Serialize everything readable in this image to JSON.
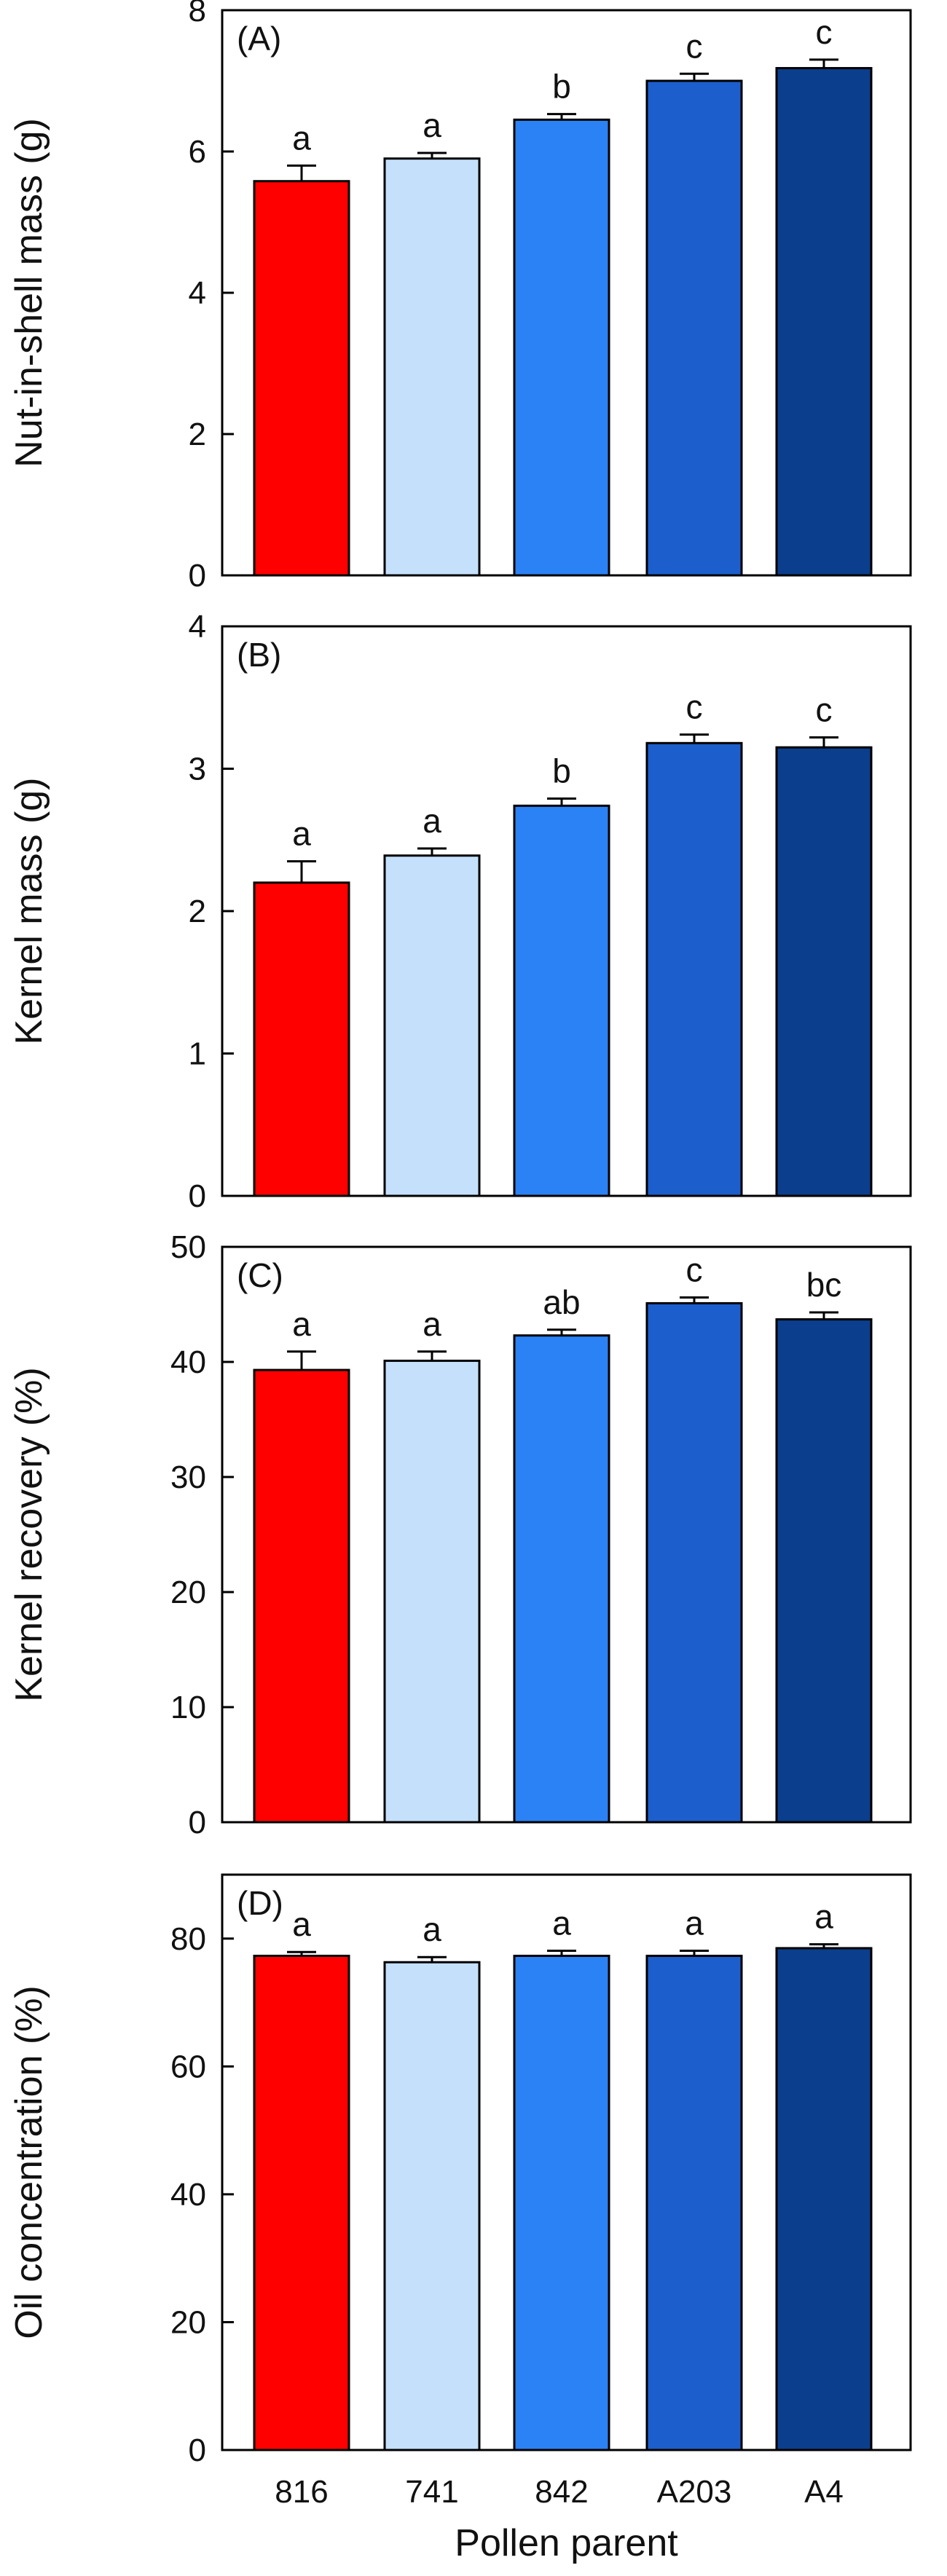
{
  "chart_data": [
    {
      "type": "bar",
      "panel_label": "(A)",
      "ylabel": "Nut-in-shell mass (g)",
      "ylim": [
        0,
        8
      ],
      "yticks": [
        0,
        2,
        4,
        6,
        8
      ],
      "categories": [
        "816",
        "741",
        "842",
        "A203",
        "A4"
      ],
      "values": [
        5.58,
        5.9,
        6.45,
        7.0,
        7.18
      ],
      "errors": [
        0.22,
        0.08,
        0.08,
        0.1,
        0.12
      ],
      "significance": [
        "a",
        "a",
        "b",
        "c",
        "c"
      ]
    },
    {
      "type": "bar",
      "panel_label": "(B)",
      "ylabel": "Kernel mass (g)",
      "ylim": [
        0,
        4
      ],
      "yticks": [
        0,
        1,
        2,
        3,
        4
      ],
      "categories": [
        "816",
        "741",
        "842",
        "A203",
        "A4"
      ],
      "values": [
        2.2,
        2.39,
        2.74,
        3.18,
        3.15
      ],
      "errors": [
        0.15,
        0.05,
        0.05,
        0.06,
        0.07
      ],
      "significance": [
        "a",
        "a",
        "b",
        "c",
        "c"
      ]
    },
    {
      "type": "bar",
      "panel_label": "(C)",
      "ylabel": "Kernel recovery (%)",
      "ylim": [
        0,
        50
      ],
      "yticks": [
        0,
        10,
        20,
        30,
        40,
        50
      ],
      "categories": [
        "816",
        "741",
        "842",
        "A203",
        "A4"
      ],
      "values": [
        39.3,
        40.1,
        42.3,
        45.1,
        43.7
      ],
      "errors": [
        1.6,
        0.8,
        0.5,
        0.5,
        0.6
      ],
      "significance": [
        "a",
        "a",
        "ab",
        "c",
        "bc"
      ]
    },
    {
      "type": "bar",
      "panel_label": "(D)",
      "ylabel": "Oil concentration (%)",
      "ylim": [
        0,
        90
      ],
      "yticks": [
        0,
        20,
        40,
        60,
        80
      ],
      "categories": [
        "816",
        "741",
        "842",
        "A203",
        "A4"
      ],
      "values": [
        77.3,
        76.3,
        77.3,
        77.3,
        78.5
      ],
      "errors": [
        0.6,
        0.8,
        0.8,
        0.8,
        0.6
      ],
      "significance": [
        "a",
        "a",
        "a",
        "a",
        "a"
      ],
      "xlabel": "Pollen parent"
    }
  ],
  "bar_colors": [
    "#ff0000",
    "#c5e0fb",
    "#2b82f5",
    "#1c5fcc",
    "#0b3e8c"
  ]
}
